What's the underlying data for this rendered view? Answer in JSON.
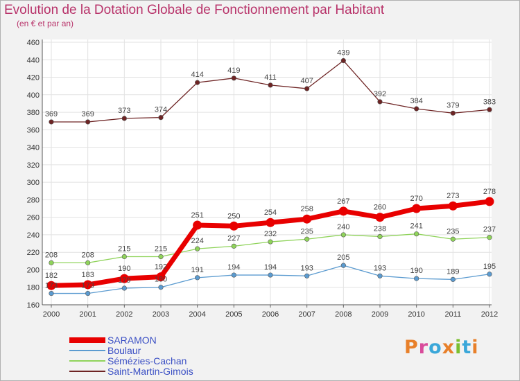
{
  "header": {
    "title": "Evolution de la Dotation Globale de Fonctionnement par Habitant",
    "subtitle": "(en € et par an)"
  },
  "brand": {
    "text": "Proxiti",
    "colors": [
      "#e8802a",
      "#d94b9b",
      "#3aa7d9",
      "#e8802a",
      "#7bbf2e",
      "#3aa7d9",
      "#e8802a"
    ]
  },
  "chart_data": {
    "type": "line",
    "x": [
      2000,
      2001,
      2002,
      2003,
      2004,
      2005,
      2006,
      2007,
      2008,
      2009,
      2010,
      2011,
      2012
    ],
    "ylim": [
      160,
      460
    ],
    "yticks": [
      160,
      180,
      200,
      220,
      240,
      260,
      280,
      300,
      320,
      340,
      360,
      380,
      400,
      420,
      440,
      460
    ],
    "grid": true,
    "legend_position": "bottom-left",
    "series": [
      {
        "name": "SARAMON",
        "color": "#e80000",
        "values": [
          182,
          183,
          190,
          192,
          251,
          250,
          254,
          258,
          267,
          260,
          270,
          273,
          278
        ]
      },
      {
        "name": "Boulaur",
        "color": "#5b9bd0",
        "values": [
          173,
          173,
          179,
          180,
          191,
          194,
          194,
          193,
          205,
          193,
          190,
          189,
          195
        ]
      },
      {
        "name": "Sémézies-Cachan",
        "color": "#8fd35a",
        "values": [
          208,
          208,
          215,
          215,
          224,
          227,
          232,
          235,
          240,
          238,
          241,
          235,
          237
        ]
      },
      {
        "name": "Saint-Martin-Gimois",
        "color": "#6e2424",
        "values": [
          369,
          369,
          373,
          374,
          414,
          419,
          411,
          407,
          439,
          392,
          384,
          379,
          383
        ]
      }
    ],
    "labeled_series": [
      "SARAMON",
      "Sémézies-Cachan",
      "Saint-Martin-Gimois",
      "Boulaur"
    ]
  }
}
